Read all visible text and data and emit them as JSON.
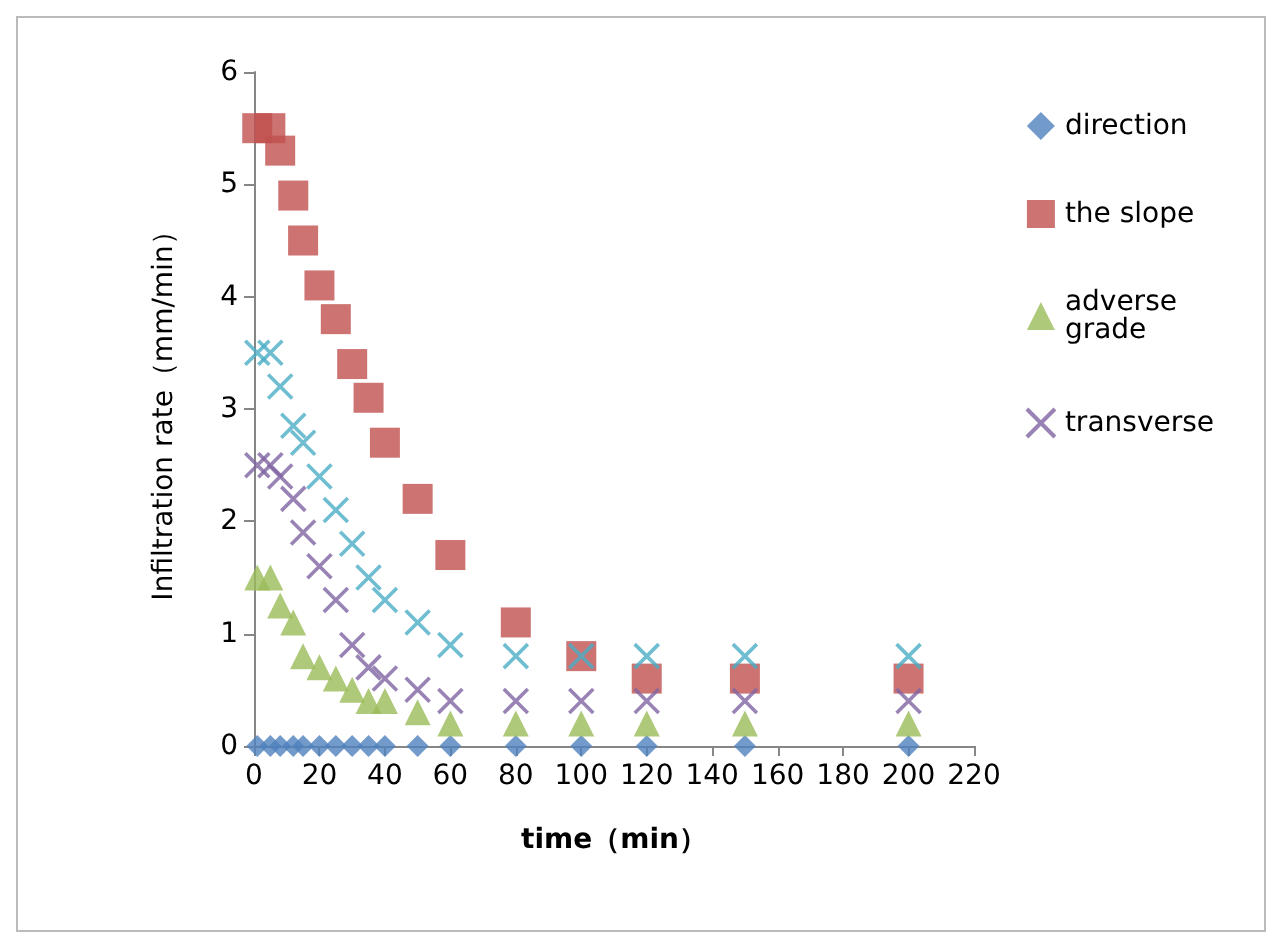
{
  "chart_data": {
    "type": "scatter",
    "xlabel": "time（min）",
    "ylabel": "Infiltration rate（mm/min）",
    "x": [
      1,
      5,
      8,
      12,
      15,
      20,
      25,
      30,
      35,
      40,
      50,
      60,
      80,
      100,
      120,
      150,
      200
    ],
    "series": [
      {
        "name": "direction",
        "color": "#4f81bd",
        "marker": "diamond",
        "values": [
          0,
          0,
          0,
          0,
          0,
          0,
          0,
          0,
          0,
          0,
          0,
          0,
          0,
          0,
          0,
          0,
          0
        ]
      },
      {
        "name": "the slope",
        "color": "#c0504d",
        "marker": "square",
        "values": [
          5.5,
          5.5,
          5.3,
          4.9,
          4.5,
          4.1,
          3.8,
          3.4,
          3.1,
          2.7,
          2.2,
          1.7,
          1.1,
          0.8,
          0.6,
          0.6,
          0.6
        ]
      },
      {
        "name": "adverse grade",
        "color": "#9bbb59",
        "marker": "triangle",
        "values": [
          1.5,
          1.5,
          1.25,
          1.1,
          0.8,
          0.7,
          0.6,
          0.5,
          0.4,
          0.4,
          0.3,
          0.2,
          0.2,
          0.2,
          0.2,
          0.2,
          0.2
        ]
      },
      {
        "name": "transverse",
        "color": "#8064a2",
        "marker": "cross",
        "values": [
          2.5,
          2.5,
          2.4,
          2.2,
          1.9,
          1.6,
          1.3,
          0.9,
          0.7,
          0.6,
          0.5,
          0.4,
          0.4,
          0.4,
          0.4,
          0.4,
          0.4
        ]
      },
      {
        "color": "#4bacc6",
        "marker": "cross",
        "values": [
          3.5,
          3.5,
          3.2,
          2.85,
          2.7,
          2.4,
          2.1,
          1.8,
          1.5,
          1.3,
          1.1,
          0.9,
          0.8,
          0.8,
          0.8,
          0.8,
          0.8
        ]
      }
    ],
    "xlim": [
      0,
      220
    ],
    "xticks": [
      0,
      20,
      40,
      60,
      80,
      100,
      120,
      140,
      160,
      180,
      200,
      220
    ],
    "ylim": [
      0,
      6
    ],
    "yticks": [
      0,
      1,
      2,
      3,
      4,
      5,
      6
    ],
    "grid": false,
    "legend": "right"
  }
}
